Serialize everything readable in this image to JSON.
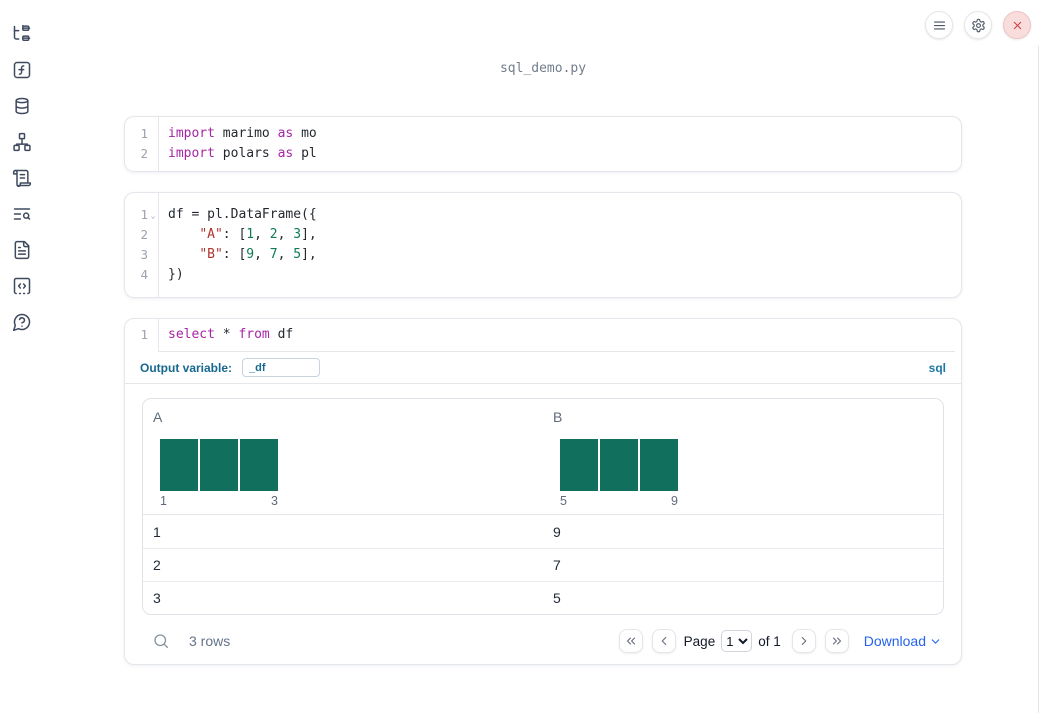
{
  "window": {
    "title": "sql_demo.py"
  },
  "topbar": {
    "menu_button": {
      "icon": "hamburger-menu-icon"
    },
    "settings_button": {
      "icon": "gear-icon"
    },
    "shutdown_button": {
      "icon": "close-icon",
      "accent": "#cf4444"
    }
  },
  "sidebar": {
    "items": [
      {
        "id": "file-explorer",
        "icon": "file-tree-icon"
      },
      {
        "id": "variables",
        "icon": "function-square-icon"
      },
      {
        "id": "data-sources",
        "icon": "database-icon"
      },
      {
        "id": "dependency-graph",
        "icon": "network-icon"
      },
      {
        "id": "scratchpad",
        "icon": "scroll-icon"
      },
      {
        "id": "logs",
        "icon": "text-search-icon"
      },
      {
        "id": "documentation",
        "icon": "file-text-icon"
      },
      {
        "id": "snippets",
        "icon": "code-snippet-icon"
      },
      {
        "id": "help",
        "icon": "help-chat-icon"
      }
    ]
  },
  "cells": [
    {
      "id": "imports-cell",
      "lines": [
        {
          "num": "1",
          "fold": false,
          "tokens": [
            {
              "t": "import",
              "c": "kw"
            },
            {
              "t": " marimo ",
              "c": "pl"
            },
            {
              "t": "as",
              "c": "kw"
            },
            {
              "t": " mo",
              "c": "pl"
            }
          ]
        },
        {
          "num": "2",
          "fold": false,
          "tokens": [
            {
              "t": "import",
              "c": "kw"
            },
            {
              "t": " polars ",
              "c": "pl"
            },
            {
              "t": "as",
              "c": "kw"
            },
            {
              "t": " pl",
              "c": "pl"
            }
          ]
        }
      ]
    },
    {
      "id": "dataframe-cell",
      "lines": [
        {
          "num": "1",
          "fold": true,
          "tokens": [
            {
              "t": "df = pl.DataFrame({",
              "c": "pl"
            }
          ]
        },
        {
          "num": "2",
          "fold": false,
          "tokens": [
            {
              "t": "    ",
              "c": "pl"
            },
            {
              "t": "\"A\"",
              "c": "str"
            },
            {
              "t": ": [",
              "c": "pl"
            },
            {
              "t": "1",
              "c": "num"
            },
            {
              "t": ", ",
              "c": "pl"
            },
            {
              "t": "2",
              "c": "num"
            },
            {
              "t": ", ",
              "c": "pl"
            },
            {
              "t": "3",
              "c": "num"
            },
            {
              "t": "],",
              "c": "pl"
            }
          ]
        },
        {
          "num": "3",
          "fold": false,
          "tokens": [
            {
              "t": "    ",
              "c": "pl"
            },
            {
              "t": "\"B\"",
              "c": "str"
            },
            {
              "t": ": [",
              "c": "pl"
            },
            {
              "t": "9",
              "c": "num"
            },
            {
              "t": ", ",
              "c": "pl"
            },
            {
              "t": "7",
              "c": "num"
            },
            {
              "t": ", ",
              "c": "pl"
            },
            {
              "t": "5",
              "c": "num"
            },
            {
              "t": "],",
              "c": "pl"
            }
          ]
        },
        {
          "num": "4",
          "fold": false,
          "tokens": [
            {
              "t": "})",
              "c": "pl"
            }
          ]
        }
      ]
    },
    {
      "id": "sql-cell",
      "lines": [
        {
          "num": "1",
          "fold": false,
          "tokens": [
            {
              "t": "select",
              "c": "kw"
            },
            {
              "t": " * ",
              "c": "pl"
            },
            {
              "t": "from",
              "c": "kw"
            },
            {
              "t": " df",
              "c": "pl"
            }
          ]
        }
      ]
    }
  ],
  "sql_cell": {
    "output_variable_label": "Output variable:",
    "output_variable_value": "_df",
    "language_badge": "sql"
  },
  "output_table": {
    "columns": [
      {
        "name": "A",
        "histogram": {
          "type": "bar",
          "values": [
            1,
            1,
            1
          ],
          "min_label": "1",
          "max_label": "3",
          "bar_color": "#11705d"
        }
      },
      {
        "name": "B",
        "histogram": {
          "type": "bar",
          "values": [
            1,
            1,
            1
          ],
          "min_label": "5",
          "max_label": "9",
          "bar_color": "#11705d"
        }
      }
    ],
    "rows": [
      [
        "1",
        "9"
      ],
      [
        "2",
        "7"
      ],
      [
        "3",
        "5"
      ]
    ],
    "row_count_text": "3 rows",
    "pagination": {
      "page_label": "Page",
      "page_value": "1",
      "of_label": "of 1"
    },
    "download_label": "Download"
  },
  "colors": {
    "keyword": "#a626a4",
    "string": "#b0342f",
    "number": "#0c7a52",
    "histogram_bar": "#11705d",
    "link_blue": "#2563eb",
    "marimo_blue": "#17688f",
    "close_red": "#cf4444"
  }
}
